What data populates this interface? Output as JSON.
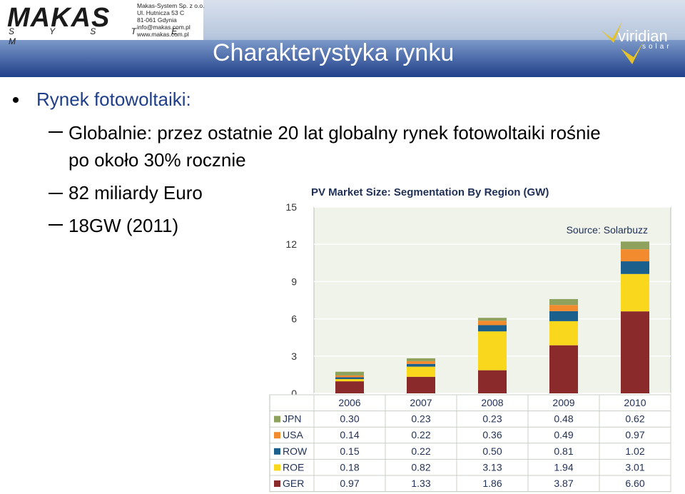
{
  "header": {
    "logo_text": "MAKAS",
    "logo_sub": "S Y S T E M",
    "company_lines": [
      "Makas-System Sp. z o.o.",
      "Ul. Hutnicza 53 C",
      "81-061 Gdynia",
      "info@makas.com.pl",
      "www.makas.com.pl"
    ],
    "title": "Charakterystyka rynku",
    "partner_logo": "viridian",
    "partner_logo_sub": "solar"
  },
  "content": {
    "bullet": "Rynek fotowoltaiki:",
    "sub1_line1": "Globalnie: przez ostatnie 20 lat globalny rynek fotowoltaiki rośnie",
    "sub1_line2": "po około 30% rocznie",
    "sub2": "82 miliardy Euro",
    "sub3": "18GW (2011)"
  },
  "colors": {
    "JPN": "#8ea25e",
    "USA": "#f28b2e",
    "ROW": "#1b5f8c",
    "ROE": "#f9d71c",
    "GER": "#8b2a2a"
  },
  "chart_data": {
    "type": "bar",
    "stacked": true,
    "title": "PV Market Size: Segmentation By Region (GW)",
    "annotation": "Source: Solarbuzz",
    "categories": [
      "2006",
      "2007",
      "2008",
      "2009",
      "2010"
    ],
    "series": [
      {
        "name": "JPN",
        "values": [
          0.3,
          0.23,
          0.23,
          0.48,
          0.62
        ]
      },
      {
        "name": "USA",
        "values": [
          0.14,
          0.22,
          0.36,
          0.49,
          0.97
        ]
      },
      {
        "name": "ROW",
        "values": [
          0.15,
          0.22,
          0.5,
          0.81,
          1.02
        ]
      },
      {
        "name": "ROE",
        "values": [
          0.18,
          0.82,
          3.13,
          1.94,
          3.01
        ]
      },
      {
        "name": "GER",
        "values": [
          0.97,
          1.33,
          1.86,
          3.87,
          6.6
        ]
      }
    ],
    "ylim": [
      0,
      15
    ],
    "yticks": [
      "0",
      "3",
      "6",
      "9",
      "12",
      "15"
    ],
    "table": true,
    "grid": true
  }
}
